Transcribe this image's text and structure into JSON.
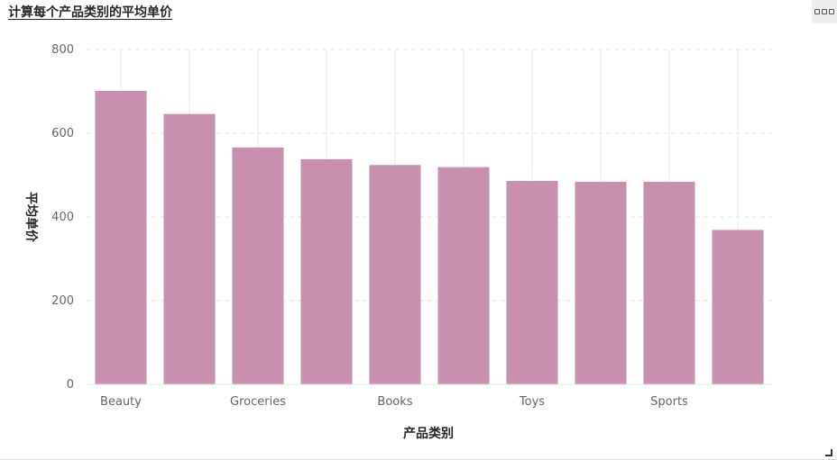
{
  "header": {
    "title": "计算每个产品类别的平均单价",
    "menu_icon": "more-options-icon"
  },
  "chart_data": {
    "type": "bar",
    "title": "计算每个产品类别的平均单价",
    "xlabel": "产品类别",
    "ylabel": "平均单价",
    "categories": [
      "Beauty",
      "",
      "Groceries",
      "",
      "Books",
      "",
      "Toys",
      "",
      "Sports",
      ""
    ],
    "values": [
      701,
      646,
      566,
      538,
      524,
      519,
      486,
      484,
      484,
      369
    ],
    "bar_color": "#c98fae",
    "ylim": [
      0,
      800
    ],
    "yticks": [
      0,
      200,
      400,
      600,
      800
    ],
    "grid": true,
    "legend": "none"
  }
}
